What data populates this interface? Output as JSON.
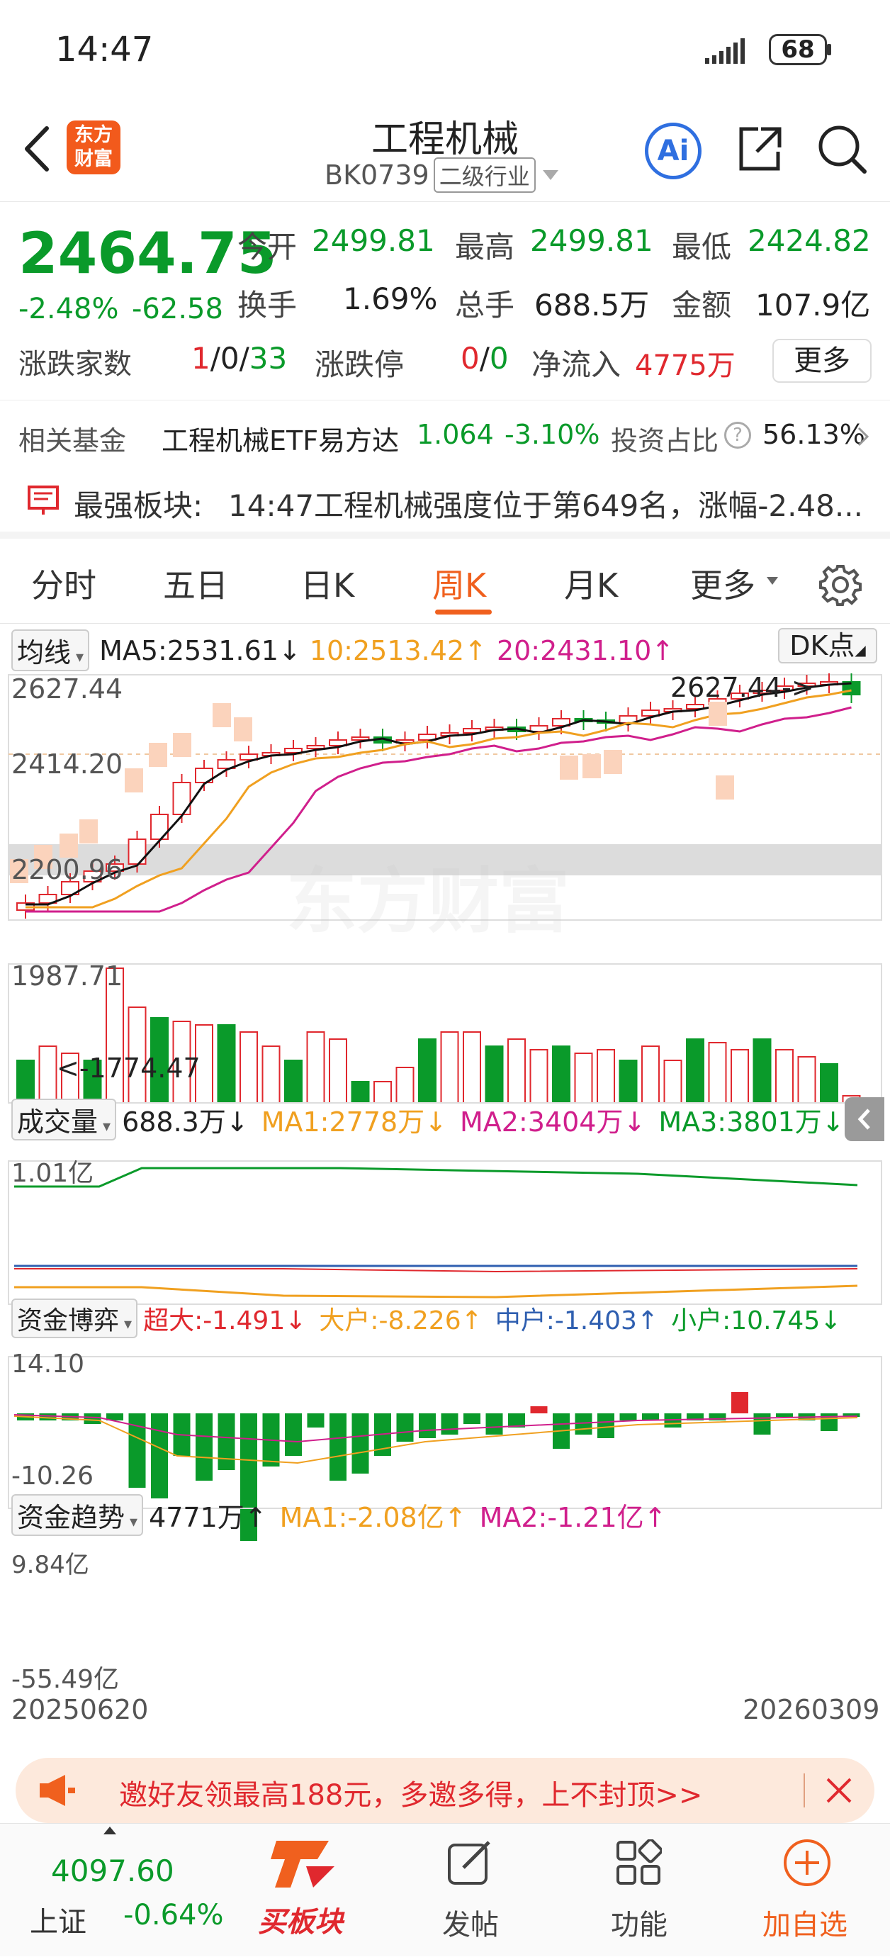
{
  "status": {
    "time": "14:47",
    "battery": "68"
  },
  "header": {
    "logo_line1": "东方",
    "logo_line2": "财富",
    "title": "工程机械",
    "code": "BK0739",
    "tag": "二级行业",
    "ai": "Ai"
  },
  "quote": {
    "price": "2464.75",
    "pct": "-2.48%",
    "chg": "-62.58",
    "open_label": "今开",
    "open": "2499.81",
    "high_label": "最高",
    "high": "2499.81",
    "low_label": "最低",
    "low": "2424.82",
    "turnover_label": "换手",
    "turnover": "1.69%",
    "volume_label": "总手",
    "volume": "688.5万",
    "amount_label": "金额",
    "amount": "107.9亿",
    "updown_label": "涨跌家数",
    "up": "1",
    "flat": "/0/",
    "down": "33",
    "limit_label": "涨跌停",
    "limit_up": "0",
    "limit_sep": "/",
    "limit_down": "0",
    "inflow_label": "净流入",
    "inflow": "4775万",
    "more": "更多"
  },
  "fund": {
    "label": "相关基金",
    "name": "工程机械ETF易方达",
    "price": "1.064",
    "pct": "-3.10%",
    "ratio_label": "投资占比",
    "ratio": "56.13%"
  },
  "strong": {
    "label": "最强板块:",
    "text": "14:47工程机械强度位于第649名，涨幅-2.48..."
  },
  "tabs": [
    "分时",
    "五日",
    "日K",
    "周K",
    "月K",
    "更多"
  ],
  "active_tab": "周K",
  "ma": {
    "sel": "均线",
    "ma5": "MA5:2531.61↓",
    "ma10": "10:2513.42↑",
    "ma20": "20:2431.10↑",
    "dk": "DK点"
  },
  "kchart": {
    "y_labels": [
      "2627.44",
      "2414.20",
      "2200.96",
      "1987.71",
      "1774.47"
    ],
    "high_marker": "2627.44->",
    "low_marker": "<-1774.47",
    "watermark": "东方财富"
  },
  "volume": {
    "sel": "成交量",
    "val": "688.3万↓",
    "ma1": "MA1:2778万↓",
    "ma2": "MA2:3404万↓",
    "ma3": "MA3:3801万↓",
    "ymax": "1.01亿"
  },
  "game": {
    "sel": "资金博弈",
    "super": "超大:-1.491↓",
    "big": "大户:-8.226↑",
    "mid": "中户:-1.403↑",
    "small": "小户:10.745↓",
    "ymax": "14.10",
    "ymin": "-10.26"
  },
  "trend": {
    "sel": "资金趋势",
    "val": "4771万↑",
    "ma1": "MA1:-2.08亿↑",
    "ma2": "MA2:-1.21亿↑",
    "ymax": "9.84亿",
    "ymin": "-55.49亿"
  },
  "dates": {
    "start": "20250620",
    "end": "20260309"
  },
  "banner": {
    "text": "邀好友领最高188元，多邀多得，上不封顶>>"
  },
  "bottom": {
    "index_val": "4097.60",
    "index_name": "上证",
    "index_pct": "-0.64%",
    "buy": "买板块",
    "post": "发帖",
    "func": "功能",
    "add": "加自选"
  },
  "colors": {
    "up": "#e0282e",
    "down": "#0a9a2a",
    "accent": "#f0601e"
  }
}
